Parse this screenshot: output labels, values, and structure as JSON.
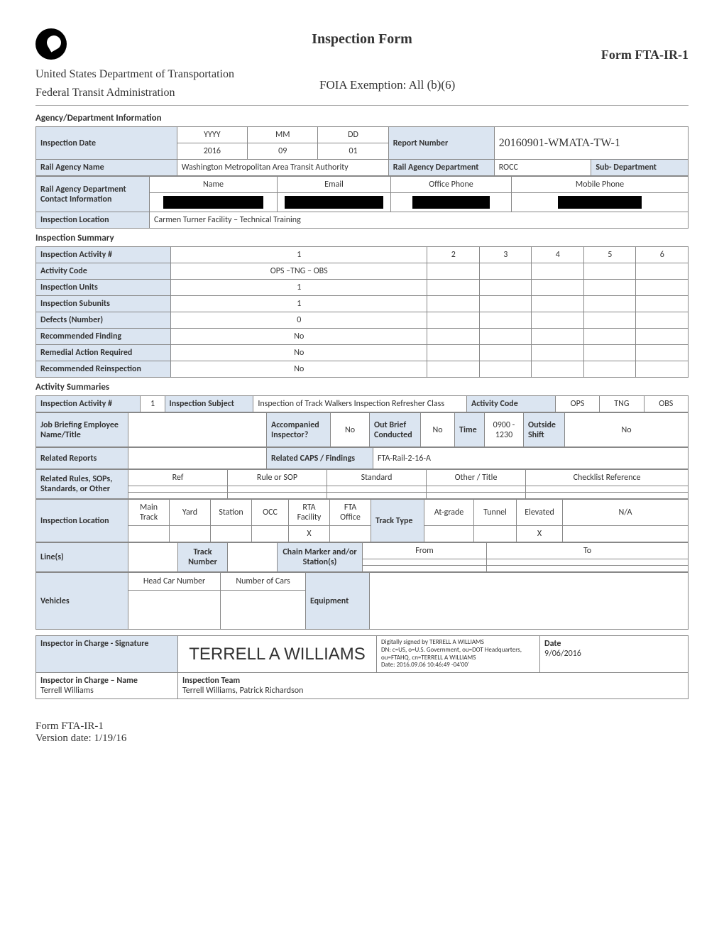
{
  "header": {
    "title": "Inspection Form",
    "form_id": "Form FTA-IR-1",
    "dept1": "United States Department of Transportation",
    "dept2": "Federal Transit Administration",
    "foia": "FOIA Exemption:  All (b)(6)"
  },
  "agency": {
    "section": "Agency/Department Information",
    "insp_date_lbl": "Inspection Date",
    "yyyy_h": "YYYY",
    "mm_h": "MM",
    "dd_h": "DD",
    "yyyy": "2016",
    "mm": "09",
    "dd": "01",
    "report_num_lbl": "Report Number",
    "report_num": "20160901-WMATA-TW-1",
    "rail_agency_lbl": "Rail Agency Name",
    "rail_agency": "Washington Metropolitan Area Transit Authority",
    "rail_dept_lbl": "Rail Agency Department",
    "rail_dept": "ROCC",
    "sub_dept_lbl": "Sub- Department",
    "sub_dept": "",
    "contact_lbl": "Rail Agency Department Contact Information",
    "name_h": "Name",
    "email_h": "Email",
    "office_h": "Office Phone",
    "mobile_h": "Mobile Phone",
    "location_lbl": "Inspection Location",
    "location": "Carmen Turner Facility – Technical Training"
  },
  "summary": {
    "section": "Inspection Summary",
    "activity_num_lbl": "Inspection Activity #",
    "cols": [
      "1",
      "2",
      "3",
      "4",
      "5",
      "6"
    ],
    "rows": [
      {
        "lbl": "Activity Code",
        "vals": [
          "OPS –TNG – OBS",
          "",
          "",
          "",
          "",
          ""
        ]
      },
      {
        "lbl": "Inspection Units",
        "vals": [
          "1",
          "",
          "",
          "",
          "",
          ""
        ]
      },
      {
        "lbl": "Inspection Subunits",
        "vals": [
          "1",
          "",
          "",
          "",
          "",
          ""
        ]
      },
      {
        "lbl": "Defects (Number)",
        "vals": [
          "0",
          "",
          "",
          "",
          "",
          ""
        ]
      },
      {
        "lbl": "Recommended Finding",
        "vals": [
          "No",
          "",
          "",
          "",
          "",
          ""
        ]
      },
      {
        "lbl": "Remedial Action Required",
        "vals": [
          "No",
          "",
          "",
          "",
          "",
          ""
        ]
      },
      {
        "lbl": "Recommended Reinspection",
        "vals": [
          "No",
          "",
          "",
          "",
          "",
          ""
        ]
      }
    ]
  },
  "activity": {
    "section": "Activity Summaries",
    "insp_act_lbl": "Inspection Activity #",
    "insp_act_val": "1",
    "subject_lbl": "Inspection Subject",
    "subject_val": "Inspection of Track Walkers Inspection Refresher Class",
    "code_lbl": "Activity Code",
    "code1": "OPS",
    "code2": "TNG",
    "code3": "OBS",
    "job_lbl": "Job Briefing Employee Name/Title",
    "job_val": "",
    "accomp_lbl": "Accompanied Inspector?",
    "accomp_val": "No",
    "outbrief_lbl": "Out Brief Conducted",
    "outbrief_val": "No",
    "time_lbl": "Time",
    "time_val": "0900 - 1230",
    "outside_lbl": "Outside Shift",
    "outside_val": "No",
    "related_rep_lbl": "Related Reports",
    "related_rep_val": "",
    "related_caps_lbl": "Related CAPS / Findings",
    "related_caps_val": "FTA-Rail-2-16-A",
    "rules_lbl": "Related Rules, SOPs, Standards, or Other",
    "ref_h": "Ref",
    "rule_h": "Rule or SOP",
    "std_h": "Standard",
    "other_h": "Other / Title",
    "check_h": "Checklist Reference",
    "loc_lbl": "Inspection Location",
    "loc_h": [
      "Main Track",
      "Yard",
      "Station",
      "OCC",
      "RTA Facility",
      "FTA Office"
    ],
    "loc_v": [
      "",
      "",
      "",
      "",
      "X",
      ""
    ],
    "track_lbl": "Track Type",
    "track_h": [
      "At-grade",
      "Tunnel",
      "Elevated",
      "N/A"
    ],
    "track_v": [
      "",
      "",
      "X",
      ""
    ],
    "lines_lbl": "Line(s)",
    "track_num_lbl": "Track Number",
    "chain_lbl": "Chain Marker and/or Station(s)",
    "from_h": "From",
    "to_h": "To",
    "vehicles_lbl": "Vehicles",
    "head_h": "Head Car Number",
    "numcars_h": "Number of Cars",
    "equip_lbl": "Equipment"
  },
  "sig": {
    "sig_lbl": "Inspector in Charge - Signature",
    "sig_name": "TERRELL A WILLIAMS",
    "sig_meta": "Digitally signed by TERRELL A WILLIAMS\nDN: c=US, o=U.S. Government, ou=DOT Headquarters, ou=FTAHQ, cn=TERRELL A WILLIAMS\nDate: 2016.09.06 10:46:49 -04'00'",
    "date_lbl": "Date",
    "date_val": "9/06/2016",
    "name_lbl": "Inspector in Charge – Name",
    "name_val": "Terrell Williams",
    "team_lbl": "Inspection Team",
    "team_val": "Terrell Williams, Patrick Richardson"
  },
  "footer": {
    "l1": "Form FTA-IR-1",
    "l2": "Version date: 1/19/16"
  }
}
